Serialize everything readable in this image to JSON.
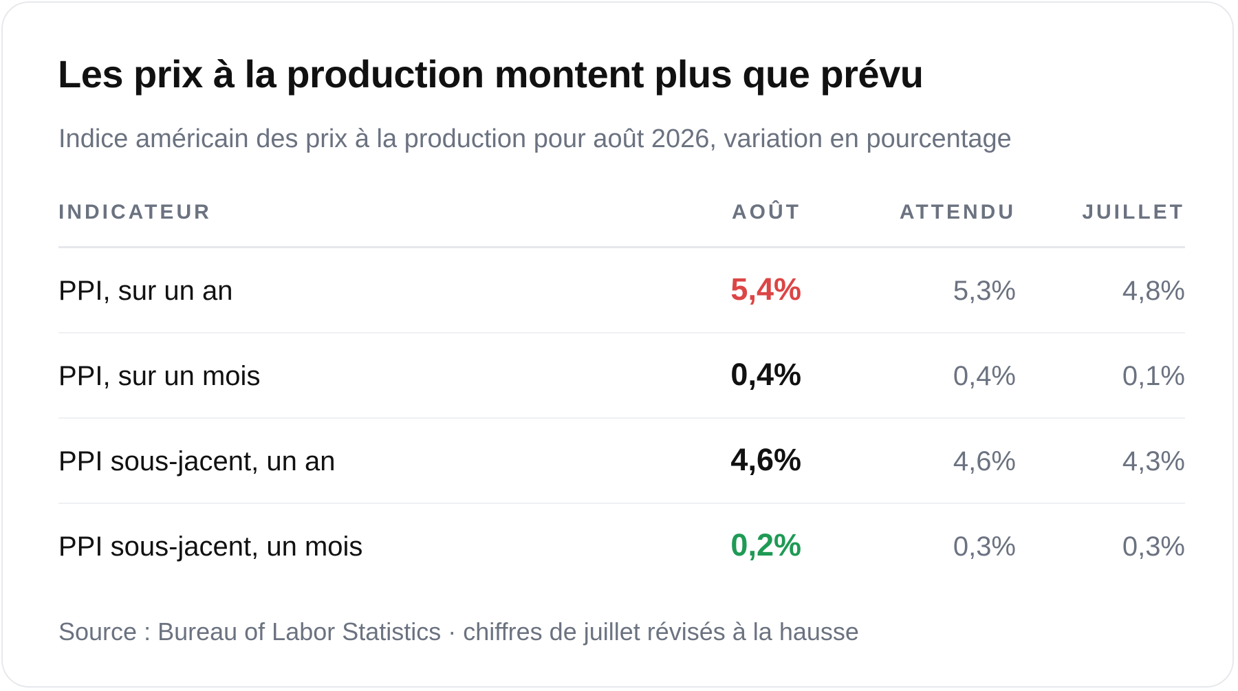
{
  "header": {
    "title": "Les prix à la production montent plus que prévu",
    "subtitle": "Indice américain des prix à la production pour août 2026, variation en pourcentage"
  },
  "table": {
    "columns": [
      "INDICATEUR",
      "AOÛT",
      "ATTENDU",
      "JUILLET"
    ],
    "rows": [
      {
        "indicator": "PPI, sur un an",
        "aout": "5,4%",
        "attendu": "5,3%",
        "juillet": "4,8%",
        "aout_status": "above"
      },
      {
        "indicator": "PPI, sur un mois",
        "aout": "0,4%",
        "attendu": "0,4%",
        "juillet": "0,1%",
        "aout_status": "inline"
      },
      {
        "indicator": "PPI sous-jacent, un an",
        "aout": "4,6%",
        "attendu": "4,6%",
        "juillet": "4,3%",
        "aout_status": "inline"
      },
      {
        "indicator": "PPI sous-jacent, un mois",
        "aout": "0,2%",
        "attendu": "0,3%",
        "juillet": "0,3%",
        "aout_status": "below"
      }
    ]
  },
  "colors": {
    "above": "#dc4545",
    "inline": "#111111",
    "below": "#1f9a55",
    "muted": "#6b7280"
  },
  "footer": {
    "source": "Source : Bureau of Labor Statistics · chiffres de juillet révisés à la hausse"
  }
}
